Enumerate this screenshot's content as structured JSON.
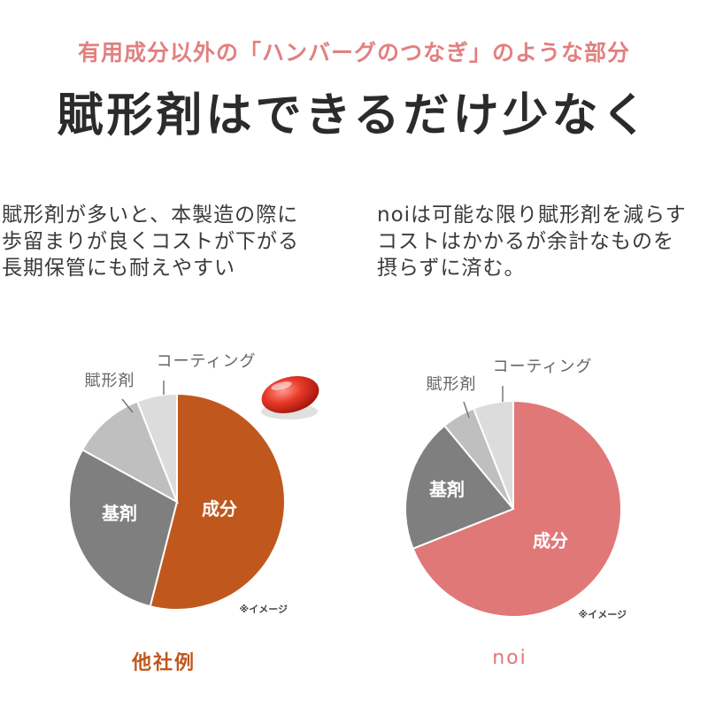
{
  "header": {
    "subtitle": "有用成分以外の「ハンバーグのつなぎ」のような部分",
    "headline": "賦形剤はできるだけ少なく"
  },
  "left_text": [
    "賦形剤が多いと、本製造の際に",
    "歩留まりが良くコストが下がる",
    "長期保管にも耐えやすい"
  ],
  "right_text": [
    "noiは可能な限り賦形剤を減らす",
    "コストはかかるが余計なものを",
    "摂らずに済む。"
  ],
  "colors": {
    "subtitle": "#e28080",
    "left_accent": "#c0581e",
    "right_accent": "#e07878",
    "base": "#7f7f7f",
    "excipient": "#bfbfbf",
    "coating": "#dcdcdc",
    "label_text": "#666666",
    "note_text": "#444444"
  },
  "chart_data": [
    {
      "type": "pie",
      "caption": "他社例",
      "note": "※イメージ",
      "slices": [
        {
          "label": "成分",
          "value": 54,
          "color": "#c0581e",
          "label_inside": true
        },
        {
          "label": "基剤",
          "value": 29,
          "color": "#7f7f7f",
          "label_inside": true
        },
        {
          "label": "賦形剤",
          "value": 11,
          "color": "#bfbfbf",
          "label_inside": false
        },
        {
          "label": "コーティング",
          "value": 6,
          "color": "#dcdcdc",
          "label_inside": false
        }
      ]
    },
    {
      "type": "pie",
      "caption": "noi",
      "note": "※イメージ",
      "slices": [
        {
          "label": "成分",
          "value": 69,
          "color": "#e07878",
          "label_inside": true
        },
        {
          "label": "基剤",
          "value": 20,
          "color": "#7f7f7f",
          "label_inside": true
        },
        {
          "label": "賦形剤",
          "value": 5,
          "color": "#bfbfbf",
          "label_inside": false
        },
        {
          "label": "コーティング",
          "value": 6,
          "color": "#dcdcdc",
          "label_inside": false
        }
      ]
    }
  ]
}
